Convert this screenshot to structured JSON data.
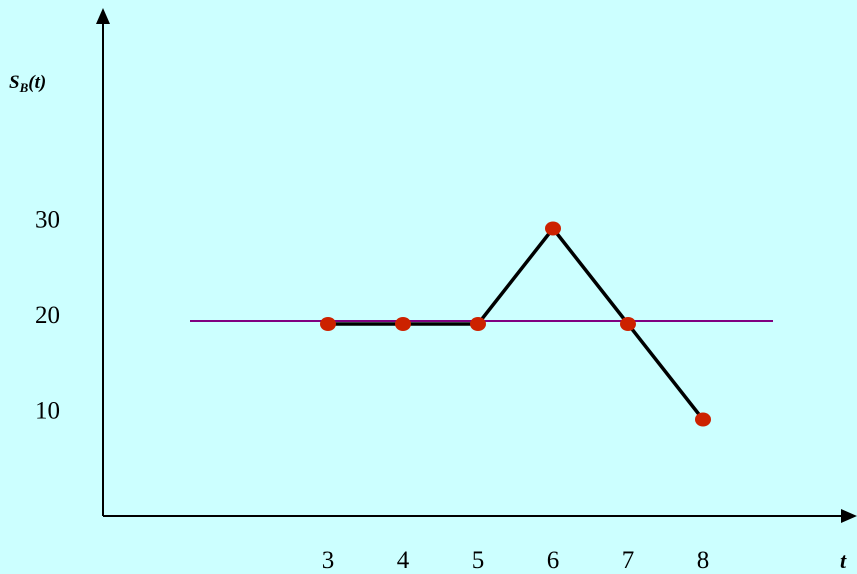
{
  "chart_data": {
    "type": "line",
    "x": [
      3,
      4,
      5,
      6,
      7,
      8
    ],
    "series": [
      {
        "values": [
          20,
          20,
          20,
          30,
          20,
          10
        ],
        "color": "#000000",
        "marker_color": "#cc2200"
      }
    ],
    "reference_line": {
      "y": 20,
      "color": "#800080"
    },
    "x_ticks": [
      "3",
      "4",
      "5",
      "6",
      "7",
      "8"
    ],
    "y_ticks": [
      "10",
      "20",
      "30"
    ],
    "ylabel": {
      "main": "S",
      "subscript": "B",
      "rest": "(t)"
    },
    "xlabel": "t",
    "grid": false,
    "legend": "none"
  },
  "colors": {
    "background": "#ccffff",
    "axis": "#000000"
  }
}
